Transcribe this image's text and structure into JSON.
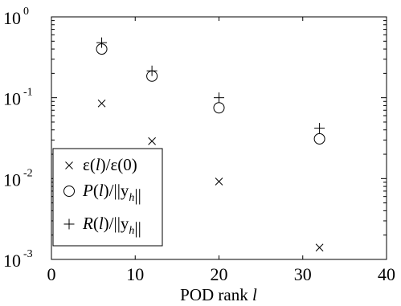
{
  "chart_data": {
    "type": "scatter",
    "title": "",
    "xlabel": "POD rank",
    "xlabel_symbol": "l",
    "ylabel": "",
    "xlim": [
      0,
      40
    ],
    "ylim": [
      0.001,
      1
    ],
    "yscale": "log",
    "grid": false,
    "legend_position": "bottom-left",
    "xticks": [
      "0",
      "10",
      "20",
      "30",
      "40"
    ],
    "yticks": [
      {
        "base": "10",
        "exp": "-3",
        "value": 0.001
      },
      {
        "base": "10",
        "exp": "-2",
        "value": 0.01
      },
      {
        "base": "10",
        "exp": "-1",
        "value": 0.1
      },
      {
        "base": "10",
        "exp": "0",
        "value": 1
      }
    ],
    "series": [
      {
        "name": "ε(l)/ε(0)",
        "marker": "x",
        "x": [
          6,
          12,
          20,
          32
        ],
        "y": [
          0.085,
          0.029,
          0.0092,
          0.0014
        ]
      },
      {
        "name": "P(l)/||y_h||",
        "marker": "circle",
        "x": [
          6,
          12,
          20,
          32
        ],
        "y": [
          0.4,
          0.185,
          0.075,
          0.031
        ]
      },
      {
        "name": "R(l)/||y_h||",
        "marker": "plus",
        "x": [
          6,
          12,
          20,
          32
        ],
        "y": [
          0.48,
          0.215,
          0.1,
          0.042
        ]
      }
    ],
    "legend": [
      {
        "marker": "x",
        "parts": [
          {
            "t": "ε(",
            "s": "n"
          },
          {
            "t": "l",
            "s": "i"
          },
          {
            "t": ")/ε(0)",
            "s": "n"
          }
        ]
      },
      {
        "marker": "circle",
        "parts": [
          {
            "t": "P",
            "s": "i"
          },
          {
            "t": "(",
            "s": "n"
          },
          {
            "t": "l",
            "s": "i"
          },
          {
            "t": ")/||y",
            "s": "n"
          },
          {
            "t": "h",
            "s": "sub"
          },
          {
            "t": "||",
            "s": "n"
          }
        ]
      },
      {
        "marker": "plus",
        "parts": [
          {
            "t": "R",
            "s": "i"
          },
          {
            "t": "(",
            "s": "n"
          },
          {
            "t": "l",
            "s": "i"
          },
          {
            "t": ")/||y",
            "s": "n"
          },
          {
            "t": "h",
            "s": "sub"
          },
          {
            "t": "||",
            "s": "n"
          }
        ]
      }
    ]
  }
}
